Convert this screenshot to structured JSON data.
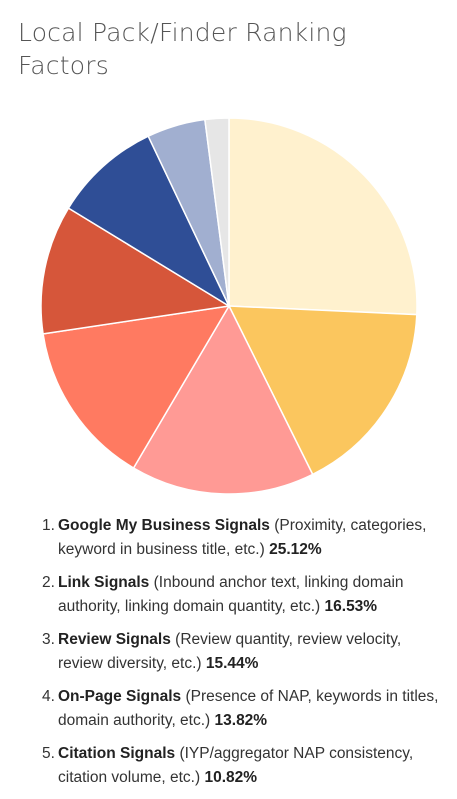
{
  "title": "Local Pack/Finder Ranking Factors",
  "chart_data": {
    "type": "pie",
    "title": "Local Pack/Finder Ranking Factors",
    "slices": [
      {
        "label": "Google My Business Signals",
        "value": 25.12,
        "color": "#FFF1CE"
      },
      {
        "label": "Link Signals",
        "value": 16.53,
        "color": "#FBC65E"
      },
      {
        "label": "Review Signals",
        "value": 15.44,
        "color": "#FF9A95"
      },
      {
        "label": "On-Page Signals",
        "value": 13.82,
        "color": "#FF7A61"
      },
      {
        "label": "Citation Signals",
        "value": 10.82,
        "color": "#D6563A"
      },
      {
        "label": "",
        "value": 9.0,
        "color": "#2F4E96"
      },
      {
        "label": "",
        "value": 4.9,
        "color": "#A1AFD0"
      },
      {
        "label": "",
        "value": 2.0,
        "color": "#E6E6E6"
      }
    ],
    "start_angle_deg": 0,
    "direction": "clockwise"
  },
  "legend": [
    {
      "num": "1.",
      "name": "Google My Business Signals",
      "desc": "(Proximity, categories, keyword in business title, etc.)",
      "pct": "25.12%"
    },
    {
      "num": "2.",
      "name": "Link Signals",
      "desc": "(Inbound anchor text, linking domain authority, linking domain quantity, etc.)",
      "pct": "16.53%"
    },
    {
      "num": "3.",
      "name": "Review Signals",
      "desc": "(Review quantity, review velocity, review diversity, etc.)",
      "pct": "15.44%"
    },
    {
      "num": "4.",
      "name": "On-Page Signals",
      "desc": "(Presence of NAP, keywords in titles, domain authority, etc.)",
      "pct": "13.82%"
    },
    {
      "num": "5.",
      "name": "Citation Signals",
      "desc": "(IYP/aggregator NAP consistency, citation volume, etc.)",
      "pct": "10.82%"
    }
  ]
}
